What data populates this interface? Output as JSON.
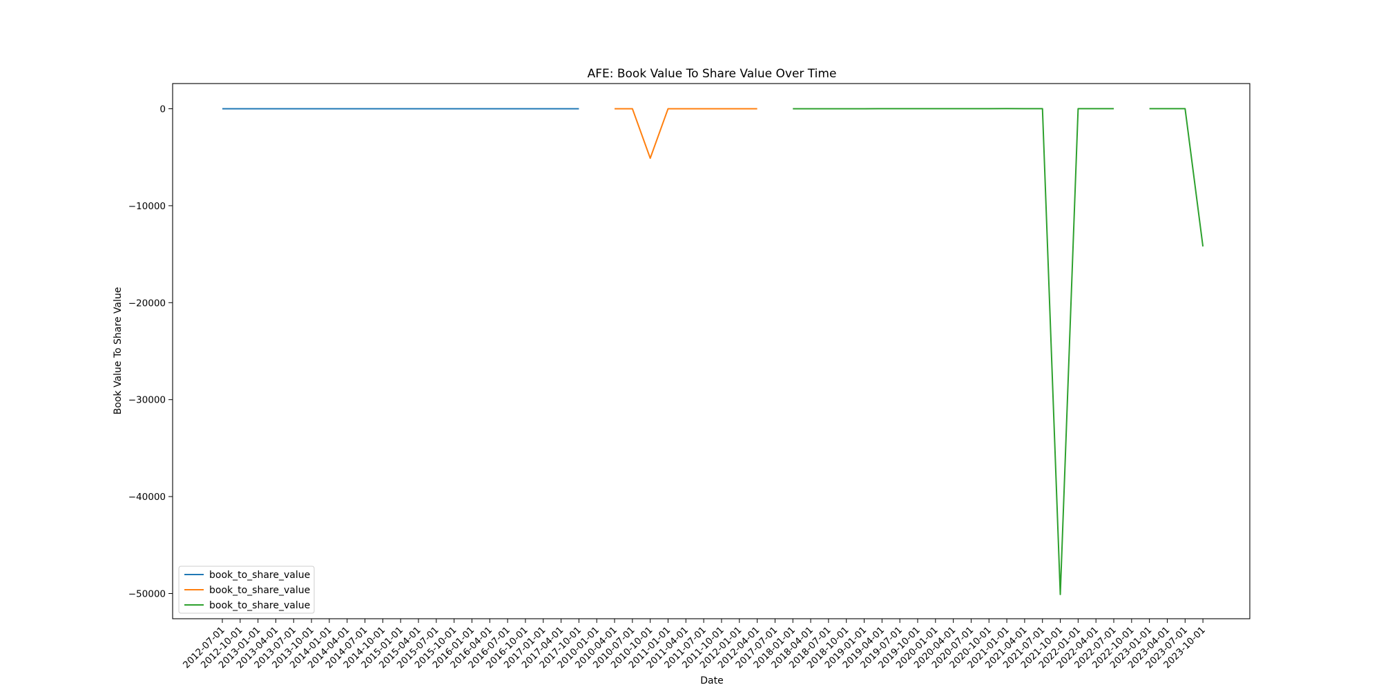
{
  "chart_data": {
    "type": "line",
    "title": "AFE: Book Value To Share Value Over Time",
    "xlabel": "Date",
    "ylabel": "Book Value To Share Value",
    "x_ticks": [
      "2012-07-01",
      "2012-10-01",
      "2013-01-01",
      "2013-04-01",
      "2013-07-01",
      "2013-10-01",
      "2014-01-01",
      "2014-04-01",
      "2014-07-01",
      "2014-10-01",
      "2015-01-01",
      "2015-04-01",
      "2015-07-01",
      "2015-10-01",
      "2016-01-01",
      "2016-04-01",
      "2016-07-01",
      "2016-10-01",
      "2017-01-01",
      "2017-04-01",
      "2017-10-01",
      "2010-01-01",
      "2010-04-01",
      "2010-07-01",
      "2010-10-01",
      "2011-01-01",
      "2011-04-01",
      "2011-07-01",
      "2011-10-01",
      "2012-01-01",
      "2012-04-01",
      "2017-07-01",
      "2018-01-01",
      "2018-04-01",
      "2018-07-01",
      "2018-10-01",
      "2019-01-01",
      "2019-04-01",
      "2019-07-01",
      "2019-10-01",
      "2020-01-01",
      "2020-04-01",
      "2020-07-01",
      "2020-10-01",
      "2021-01-01",
      "2021-04-01",
      "2021-07-01",
      "2021-10-01",
      "2022-01-01",
      "2022-04-01",
      "2022-07-01",
      "2022-10-01",
      "2023-01-01",
      "2023-04-01",
      "2023-07-01",
      "2023-10-01"
    ],
    "y_ticks": [
      0,
      -10000,
      -20000,
      -30000,
      -40000,
      -50000
    ],
    "ylim": [
      -52600,
      2600
    ],
    "grid": false,
    "legend_position": "lower-left",
    "series": [
      {
        "name": "book_to_share_value",
        "color": "#1f77b4",
        "points": [
          [
            "2012-07-01",
            2
          ],
          [
            "2012-10-01",
            2
          ],
          [
            "2013-01-01",
            3
          ],
          [
            "2013-04-01",
            2
          ],
          [
            "2013-07-01",
            1
          ],
          [
            "2013-10-01",
            2
          ],
          [
            "2014-01-01",
            2
          ],
          [
            "2014-04-01",
            3
          ],
          [
            "2014-07-01",
            3
          ],
          [
            "2014-10-01",
            3
          ],
          [
            "2015-01-01",
            3
          ],
          [
            "2015-04-01",
            3
          ],
          [
            "2015-07-01",
            3
          ],
          [
            "2015-10-01",
            3
          ],
          [
            "2016-01-01",
            3
          ],
          [
            "2016-04-01",
            3
          ],
          [
            "2016-07-01",
            4
          ],
          [
            "2016-10-01",
            4
          ],
          [
            "2017-01-01",
            3
          ],
          [
            "2017-04-01",
            4
          ],
          [
            "2017-10-01",
            4
          ]
        ]
      },
      {
        "name": "book_to_share_value",
        "color": "#ff7f0e",
        "points": [
          [
            "2010-04-01",
            3
          ],
          [
            "2010-07-01",
            3
          ],
          [
            "2010-10-01",
            -5100
          ],
          [
            "2011-01-01",
            3
          ],
          [
            "2011-04-01",
            3
          ],
          [
            "2011-07-01",
            3
          ],
          [
            "2011-10-01",
            3
          ],
          [
            "2012-01-01",
            3
          ],
          [
            "2012-04-01",
            3
          ]
        ]
      },
      {
        "name": "book_to_share_value",
        "color": "#2ca02c",
        "points": [
          [
            "2018-01-01",
            4
          ],
          [
            "2018-04-01",
            4
          ],
          [
            "2018-07-01",
            4
          ],
          [
            "2018-10-01",
            4
          ],
          [
            "2019-01-01",
            4
          ],
          [
            "2019-04-01",
            8
          ],
          [
            "2019-07-01",
            9
          ],
          [
            "2019-10-01",
            10
          ],
          [
            "2020-01-01",
            6
          ],
          [
            "2020-04-01",
            8
          ],
          [
            "2020-07-01",
            10
          ],
          [
            "2020-10-01",
            12
          ],
          [
            "2021-01-01",
            14
          ],
          [
            "2021-04-01",
            12
          ],
          [
            "2021-07-01",
            10
          ],
          [
            "2021-10-01",
            -50100
          ],
          [
            "2022-01-01",
            5
          ],
          [
            "2022-04-01",
            5
          ],
          [
            "2022-07-01",
            5
          ],
          null,
          [
            "2023-01-01",
            5
          ],
          [
            "2023-04-01",
            5
          ],
          [
            "2023-07-01",
            5
          ],
          [
            "2023-10-01",
            -14200
          ]
        ]
      }
    ]
  }
}
